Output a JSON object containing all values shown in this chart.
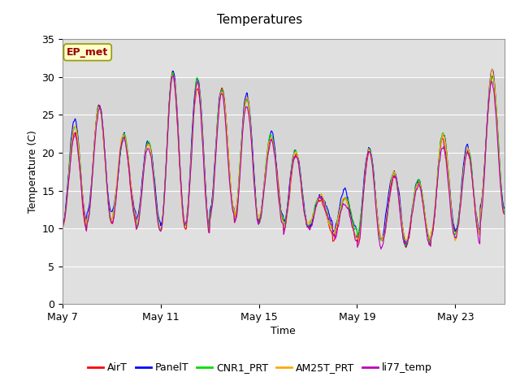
{
  "title": "Temperatures",
  "xlabel": "Time",
  "ylabel": "Temperature (C)",
  "ylim": [
    0,
    35
  ],
  "yticks": [
    0,
    5,
    10,
    15,
    20,
    25,
    30,
    35
  ],
  "x_tick_labels": [
    "May 7",
    "May 11",
    "May 15",
    "May 19",
    "May 23"
  ],
  "annotation_text": "EP_met",
  "annotation_box_facecolor": "#ffffcc",
  "annotation_text_color": "#990000",
  "annotation_edge_color": "#999900",
  "series_colors": {
    "AirT": "#ff0000",
    "PanelT": "#0000ff",
    "CNR1_PRT": "#00dd00",
    "AM25T_PRT": "#ffaa00",
    "li77_temp": "#bb00bb"
  },
  "series_order": [
    "AirT",
    "PanelT",
    "CNR1_PRT",
    "AM25T_PRT",
    "li77_temp"
  ],
  "background_color": "#ffffff",
  "plot_bg_color": "#e0e0e0",
  "grid_color": "#ffffff",
  "band_color": "#cccccc",
  "tick_positions": [
    0,
    4,
    8,
    12,
    16
  ],
  "xlim": [
    0,
    18
  ]
}
